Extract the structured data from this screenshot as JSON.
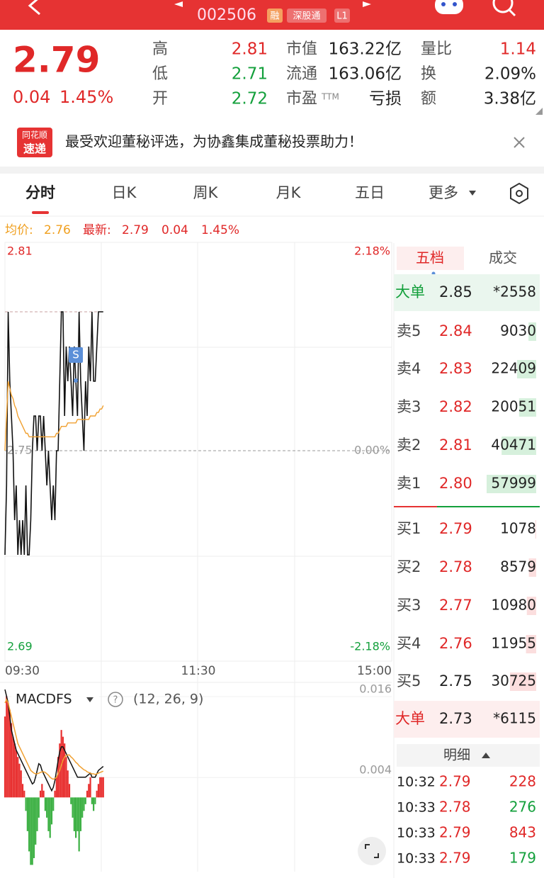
{
  "header": {
    "code": "002506",
    "badges": [
      "融",
      "深股通",
      "L1"
    ]
  },
  "quote": {
    "price": "2.79",
    "change": "0.04",
    "change_pct": "1.45%",
    "stats": [
      [
        {
          "label": "高",
          "value": "2.81",
          "color": "#e02828"
        },
        {
          "label": "市值",
          "value": "163.22亿"
        },
        {
          "label": "量比",
          "value": "1.14",
          "color": "#e02828"
        }
      ],
      [
        {
          "label": "低",
          "value": "2.71",
          "color": "#14a03c"
        },
        {
          "label": "流通",
          "value": "163.06亿"
        },
        {
          "label": "换",
          "value": "2.09%"
        }
      ],
      [
        {
          "label": "开",
          "value": "2.72",
          "color": "#14a03c"
        },
        {
          "label": "市盈",
          "sup": "TTM",
          "value": "亏损"
        },
        {
          "label": "额",
          "value": "3.38亿"
        }
      ]
    ]
  },
  "banner": {
    "logo": [
      "同花顺",
      "速递"
    ],
    "text": "最受欢迎董秘评选，为协鑫集成董秘投票助力！"
  },
  "tabs": [
    "分时",
    "日K",
    "周K",
    "月K",
    "五日",
    "更多"
  ],
  "info": {
    "avg_label": "均价:",
    "avg": "2.76",
    "last_label": "最新:",
    "last": "2.79",
    "change": "0.04",
    "change_pct": "1.45%"
  },
  "chart_data": [
    {
      "type": "line",
      "ylim": [
        2.69,
        2.81
      ],
      "yticks": [
        2.81,
        2.75,
        2.69
      ],
      "y2lim": [
        -2.18,
        2.18
      ],
      "y2ticks": [
        {
          "value": 2.18,
          "label": "2.18%"
        },
        {
          "value": 0,
          "label": "0.00%"
        },
        {
          "value": -2.18,
          "label": "-2.18%"
        }
      ],
      "xticks": [
        {
          "value": 0,
          "label": "09:30"
        },
        {
          "value": 120,
          "label": "11:30"
        },
        {
          "value": 240,
          "label": "15:00"
        }
      ],
      "annotations": [
        "S"
      ],
      "series": [
        {
          "color": "#111111",
          "values": [
            2.72,
            2.74,
            2.79,
            2.77,
            2.76,
            2.75,
            2.73,
            2.74,
            2.72,
            2.73,
            2.72,
            2.73,
            2.72,
            2.74,
            2.72,
            2.72,
            2.73,
            2.75,
            2.76,
            2.76,
            2.75,
            2.76,
            2.76,
            2.75,
            2.76,
            2.75,
            2.74,
            2.75,
            2.74,
            2.73,
            2.74,
            2.73,
            2.75,
            2.75,
            2.77,
            2.79,
            2.79,
            2.76,
            2.78,
            2.77,
            2.78,
            2.77,
            2.76,
            2.78,
            2.77,
            2.76,
            2.79,
            2.77,
            2.76,
            2.75,
            2.77,
            2.76,
            2.78,
            2.77,
            2.79,
            2.77,
            2.77,
            2.78,
            2.79,
            2.79,
            2.79,
            2.79
          ]
        },
        {
          "color": "#f0a030",
          "values": [
            2.75,
            2.76,
            2.77,
            2.768,
            2.766,
            2.765,
            2.763,
            2.762,
            2.76,
            2.759,
            2.758,
            2.757,
            2.756,
            2.755,
            2.755,
            2.754,
            2.754,
            2.754,
            2.754,
            2.754,
            2.754,
            2.754,
            2.754,
            2.754,
            2.754,
            2.754,
            2.754,
            2.754,
            2.754,
            2.754,
            2.754,
            2.754,
            2.755,
            2.755,
            2.756,
            2.757,
            2.757,
            2.757,
            2.757,
            2.758,
            2.758,
            2.758,
            2.758,
            2.758,
            2.758,
            2.759,
            2.759,
            2.759,
            2.759,
            2.759,
            2.759,
            2.759,
            2.759,
            2.76,
            2.76,
            2.76,
            2.76,
            2.761,
            2.761,
            2.762,
            2.762,
            2.763
          ]
        }
      ]
    },
    {
      "type": "macd",
      "title": "MACDFS",
      "params": "(12, 26, 9)",
      "help": "?",
      "ylim": [
        -0.011,
        0.016
      ],
      "yticks": [
        0.016,
        0.004
      ],
      "series": [
        {
          "kind": "bar",
          "colors": [
            "#e83030",
            "#3cb043"
          ],
          "values": [
            0.012,
            0.015,
            0.014,
            0.013,
            0.011,
            0.009,
            0.008,
            0.007,
            0.006,
            0.005,
            0.004,
            0.002,
            0.001,
            -0.002,
            -0.005,
            -0.008,
            -0.01,
            -0.01,
            -0.009,
            -0.007,
            -0.005,
            -0.003,
            0.001,
            0.002,
            0.001,
            -0.002,
            -0.003,
            -0.005,
            -0.006,
            -0.004,
            -0.002,
            0.001,
            0.003,
            0.006,
            0.008,
            0.01,
            0.009,
            0.008,
            0.006,
            0.004,
            0.002,
            -0.001,
            -0.003,
            -0.005,
            -0.006,
            -0.005,
            -0.008,
            -0.005,
            -0.003,
            -0.002,
            -0.001,
            0.001,
            0.002,
            0.003,
            -0.001,
            -0.002,
            -0.001,
            0.001,
            0.002,
            0.003,
            0.003,
            0.003
          ]
        },
        {
          "kind": "line",
          "color": "#111111",
          "values": [
            0.016,
            0.015,
            0.014,
            0.012,
            0.01,
            0.009,
            0.008,
            0.007,
            0.0065,
            0.006,
            0.0055,
            0.005,
            0.0045,
            0.004,
            0.0035,
            0.003,
            0.0025,
            0.002,
            0.0022,
            0.003,
            0.004,
            0.005,
            0.0048,
            0.004,
            0.0035,
            0.003,
            0.0025,
            0.002,
            0.0015,
            0.001,
            0.0015,
            0.0025,
            0.004,
            0.0055,
            0.0068,
            0.0075,
            0.0075,
            0.007,
            0.0065,
            0.006,
            0.0055,
            0.005,
            0.0045,
            0.004,
            0.0035,
            0.003,
            0.003,
            0.003,
            0.003,
            0.003,
            0.003,
            0.0032,
            0.0034,
            0.0036,
            0.003,
            0.003,
            0.003,
            0.0035,
            0.004,
            0.0042,
            0.0044,
            0.0046
          ]
        },
        {
          "kind": "line",
          "color": "#f0a030",
          "values": [
            0.014,
            0.0145,
            0.014,
            0.013,
            0.012,
            0.011,
            0.01,
            0.009,
            0.008,
            0.0075,
            0.007,
            0.0065,
            0.006,
            0.0055,
            0.005,
            0.0045,
            0.004,
            0.0038,
            0.0036,
            0.0035,
            0.0035,
            0.0036,
            0.0037,
            0.0038,
            0.0038,
            0.0037,
            0.0035,
            0.0033,
            0.003,
            0.0028,
            0.0027,
            0.0028,
            0.003,
            0.0035,
            0.004,
            0.0048,
            0.0055,
            0.006,
            0.0062,
            0.0063,
            0.0063,
            0.006,
            0.0058,
            0.0055,
            0.0052,
            0.005,
            0.0047,
            0.0045,
            0.0043,
            0.0041,
            0.004,
            0.0038,
            0.0037,
            0.0036,
            0.0035,
            0.0035,
            0.0034,
            0.0035,
            0.0036,
            0.0037,
            0.0038,
            0.0039
          ]
        }
      ]
    }
  ],
  "order_book": {
    "tabs": [
      "五档",
      "成交"
    ],
    "big_sell": {
      "label": "大单",
      "price": "2.85",
      "volume": "*2558"
    },
    "asks": [
      {
        "label": "卖5",
        "price": "2.84",
        "price_color": "#e02828",
        "volume": 9030
      },
      {
        "label": "卖4",
        "price": "2.83",
        "price_color": "#e02828",
        "volume": 22409
      },
      {
        "label": "卖3",
        "price": "2.82",
        "price_color": "#e02828",
        "volume": 20051
      },
      {
        "label": "卖2",
        "price": "2.81",
        "price_color": "#e02828",
        "volume": 40471
      },
      {
        "label": "卖1",
        "price": "2.80",
        "price_color": "#e02828",
        "volume": 57999
      }
    ],
    "bids": [
      {
        "label": "买1",
        "price": "2.79",
        "price_color": "#e02828",
        "volume": 1078
      },
      {
        "label": "买2",
        "price": "2.78",
        "price_color": "#e02828",
        "volume": 8579
      },
      {
        "label": "买3",
        "price": "2.77",
        "price_color": "#e02828",
        "volume": 10980
      },
      {
        "label": "买4",
        "price": "2.76",
        "price_color": "#e02828",
        "volume": 11955
      },
      {
        "label": "买5",
        "price": "2.75",
        "price_color": "#222222",
        "volume": 30725
      }
    ],
    "big_buy": {
      "label": "大单",
      "price": "2.73",
      "volume": "*6115"
    }
  },
  "trades": {
    "header": "明细",
    "rows": [
      {
        "time": "10:32",
        "price": "2.79",
        "price_color": "#e02828",
        "volume": "228",
        "volume_color": "#e02828"
      },
      {
        "time": "10:33",
        "price": "2.78",
        "price_color": "#e02828",
        "volume": "276",
        "volume_color": "#14a03c"
      },
      {
        "time": "10:33",
        "price": "2.79",
        "price_color": "#e02828",
        "volume": "843",
        "volume_color": "#e02828"
      },
      {
        "time": "10:33",
        "price": "2.79",
        "price_color": "#e02828",
        "volume": "179",
        "volume_color": "#14a03c"
      }
    ]
  }
}
